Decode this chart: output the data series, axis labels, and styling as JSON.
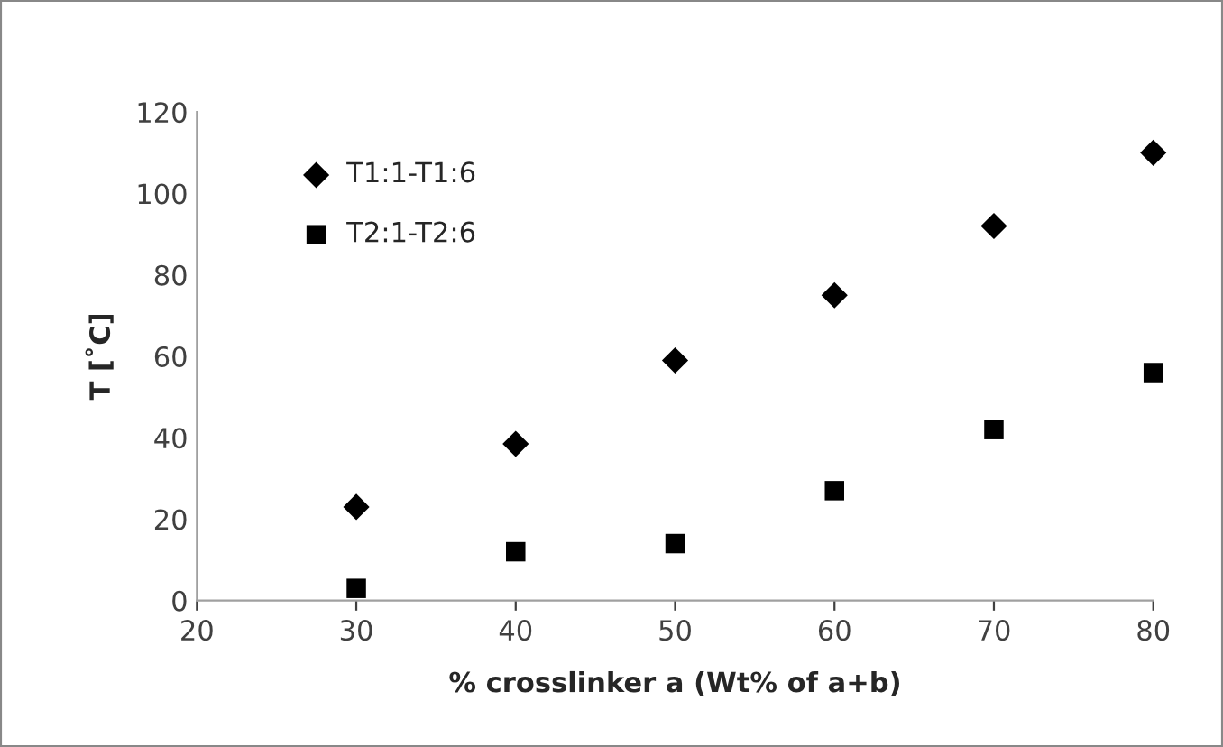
{
  "chart_data": {
    "type": "scatter",
    "xlabel": "% crosslinker a (Wt% of a+b)",
    "ylabel": "T [˚C]",
    "x": [
      30,
      40,
      50,
      60,
      70,
      80
    ],
    "series": [
      {
        "name": "T1:1-T1:6",
        "color": "#000000",
        "marker": "diamond",
        "values": [
          23,
          38.5,
          59,
          75,
          92,
          110
        ]
      },
      {
        "name": "T2:1-T2:6",
        "color": "#000000",
        "marker": "square",
        "values": [
          3,
          12,
          14,
          27,
          42,
          56
        ]
      }
    ],
    "xlim": [
      20,
      80
    ],
    "xticks": [
      20,
      30,
      40,
      50,
      60,
      70,
      80
    ],
    "ylim": [
      0,
      120
    ],
    "yticks": [
      0,
      20,
      40,
      60,
      80,
      100,
      120
    ],
    "grid": false,
    "legend": "top left"
  }
}
